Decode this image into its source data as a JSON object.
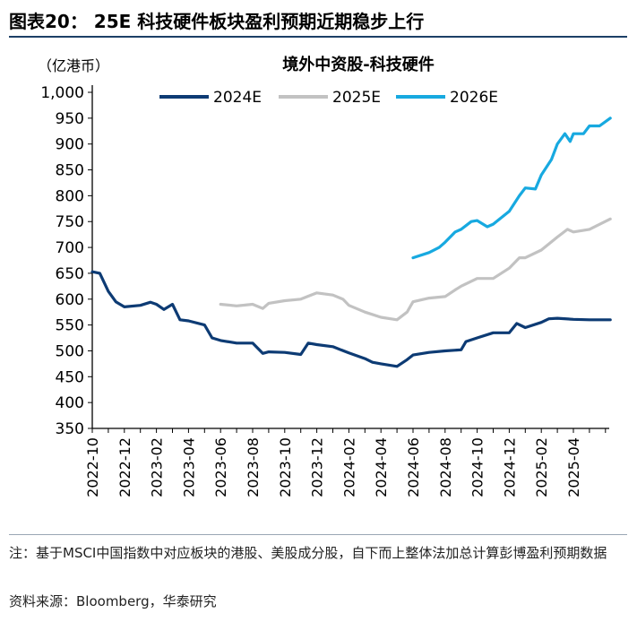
{
  "figure": {
    "title": "图表20：  25E 科技硬件板块盈利预期近期稳步上行",
    "unit": "（亿港币）",
    "footnote": "注：基于MSCI中国指数中对应板块的港股、美股成分股，自下而上整体法加总计算彭博盈利预期数据",
    "source": "资料来源：Bloomberg，华泰研究"
  },
  "colors": {
    "s2024": "#0d3b74",
    "s2025": "#c2c2c2",
    "s2026": "#17a9e0",
    "axis": "#000000"
  },
  "chart_data": {
    "type": "line",
    "title": "境外中资股-科技硬件",
    "xlabel": "",
    "ylabel": "",
    "ylim": [
      350,
      1000
    ],
    "yticks": [
      "1,000",
      "950",
      "900",
      "850",
      "800",
      "750",
      "700",
      "650",
      "600",
      "550",
      "500",
      "450",
      "400",
      "350"
    ],
    "yticks_values": [
      1000,
      950,
      900,
      850,
      800,
      750,
      700,
      650,
      600,
      550,
      500,
      450,
      400,
      350
    ],
    "xticks": [
      "2022-10",
      "2022-12",
      "2023-02",
      "2023-04",
      "2023-06",
      "2023-08",
      "2023-10",
      "2023-12",
      "2024-02",
      "2024-04",
      "2024-06",
      "2024-08",
      "2024-10",
      "2024-12",
      "2025-02",
      "2025-04"
    ],
    "x_start": "2022-10",
    "legend_position": "top",
    "series": [
      {
        "name": "2024E",
        "color_key": "s2024",
        "points": [
          [
            "2022-10",
            653
          ],
          [
            "2022-10-15",
            650
          ],
          [
            "2022-11",
            615
          ],
          [
            "2022-11-15",
            595
          ],
          [
            "2022-12",
            585
          ],
          [
            "2023-01",
            588
          ],
          [
            "2023-01-20",
            594
          ],
          [
            "2023-02",
            590
          ],
          [
            "2023-02-15",
            580
          ],
          [
            "2023-03",
            590
          ],
          [
            "2023-03-15",
            560
          ],
          [
            "2023-04",
            558
          ],
          [
            "2023-05",
            550
          ],
          [
            "2023-05-15",
            525
          ],
          [
            "2023-06",
            520
          ],
          [
            "2023-07",
            515
          ],
          [
            "2023-08",
            515
          ],
          [
            "2023-08-20",
            495
          ],
          [
            "2023-09",
            498
          ],
          [
            "2023-10",
            497
          ],
          [
            "2023-11",
            493
          ],
          [
            "2023-11-15",
            515
          ],
          [
            "2023-12",
            512
          ],
          [
            "2024-01",
            508
          ],
          [
            "2024-02",
            496
          ],
          [
            "2024-03",
            485
          ],
          [
            "2024-03-15",
            478
          ],
          [
            "2024-04",
            475
          ],
          [
            "2024-05",
            470
          ],
          [
            "2024-05-20",
            483
          ],
          [
            "2024-06",
            492
          ],
          [
            "2024-07",
            497
          ],
          [
            "2024-08",
            500
          ],
          [
            "2024-09",
            502
          ],
          [
            "2024-09-10",
            518
          ],
          [
            "2024-10",
            525
          ],
          [
            "2024-11",
            535
          ],
          [
            "2024-12",
            535
          ],
          [
            "2024-12-15",
            553
          ],
          [
            "2025-01",
            545
          ],
          [
            "2025-02",
            555
          ],
          [
            "2025-02-15",
            562
          ],
          [
            "2025-03",
            563
          ],
          [
            "2025-04",
            561
          ],
          [
            "2025-05",
            560
          ],
          [
            "2025-06-10",
            560
          ]
        ]
      },
      {
        "name": "2025E",
        "color_key": "s2025",
        "points": [
          [
            "2023-06",
            590
          ],
          [
            "2023-07",
            587
          ],
          [
            "2023-08",
            590
          ],
          [
            "2023-08-20",
            582
          ],
          [
            "2023-09",
            592
          ],
          [
            "2023-10",
            597
          ],
          [
            "2023-11",
            600
          ],
          [
            "2023-12",
            612
          ],
          [
            "2024-01",
            608
          ],
          [
            "2024-01-20",
            600
          ],
          [
            "2024-02",
            588
          ],
          [
            "2024-03",
            575
          ],
          [
            "2024-04",
            565
          ],
          [
            "2024-05",
            560
          ],
          [
            "2024-05-20",
            575
          ],
          [
            "2024-06",
            595
          ],
          [
            "2024-07",
            602
          ],
          [
            "2024-08",
            605
          ],
          [
            "2024-08-20",
            618
          ],
          [
            "2024-09",
            625
          ],
          [
            "2024-10",
            640
          ],
          [
            "2024-11",
            640
          ],
          [
            "2024-12",
            660
          ],
          [
            "2024-12-20",
            680
          ],
          [
            "2025-01",
            680
          ],
          [
            "2025-02",
            695
          ],
          [
            "2025-03",
            720
          ],
          [
            "2025-03-20",
            735
          ],
          [
            "2025-04",
            730
          ],
          [
            "2025-05",
            735
          ],
          [
            "2025-06-10",
            755
          ]
        ]
      },
      {
        "name": "2026E",
        "color_key": "s2026",
        "points": [
          [
            "2024-06",
            680
          ],
          [
            "2024-07",
            690
          ],
          [
            "2024-07-20",
            700
          ],
          [
            "2024-08",
            710
          ],
          [
            "2024-08-20",
            730
          ],
          [
            "2024-09",
            735
          ],
          [
            "2024-09-20",
            750
          ],
          [
            "2024-10",
            752
          ],
          [
            "2024-10-20",
            740
          ],
          [
            "2024-11",
            745
          ],
          [
            "2024-12",
            770
          ],
          [
            "2024-12-20",
            800
          ],
          [
            "2025-01",
            815
          ],
          [
            "2025-01-20",
            813
          ],
          [
            "2025-02",
            840
          ],
          [
            "2025-02-20",
            870
          ],
          [
            "2025-03",
            900
          ],
          [
            "2025-03-15",
            920
          ],
          [
            "2025-03-25",
            905
          ],
          [
            "2025-04",
            920
          ],
          [
            "2025-04-20",
            920
          ],
          [
            "2025-05",
            935
          ],
          [
            "2025-05-20",
            935
          ],
          [
            "2025-06-10",
            950
          ]
        ]
      }
    ]
  }
}
